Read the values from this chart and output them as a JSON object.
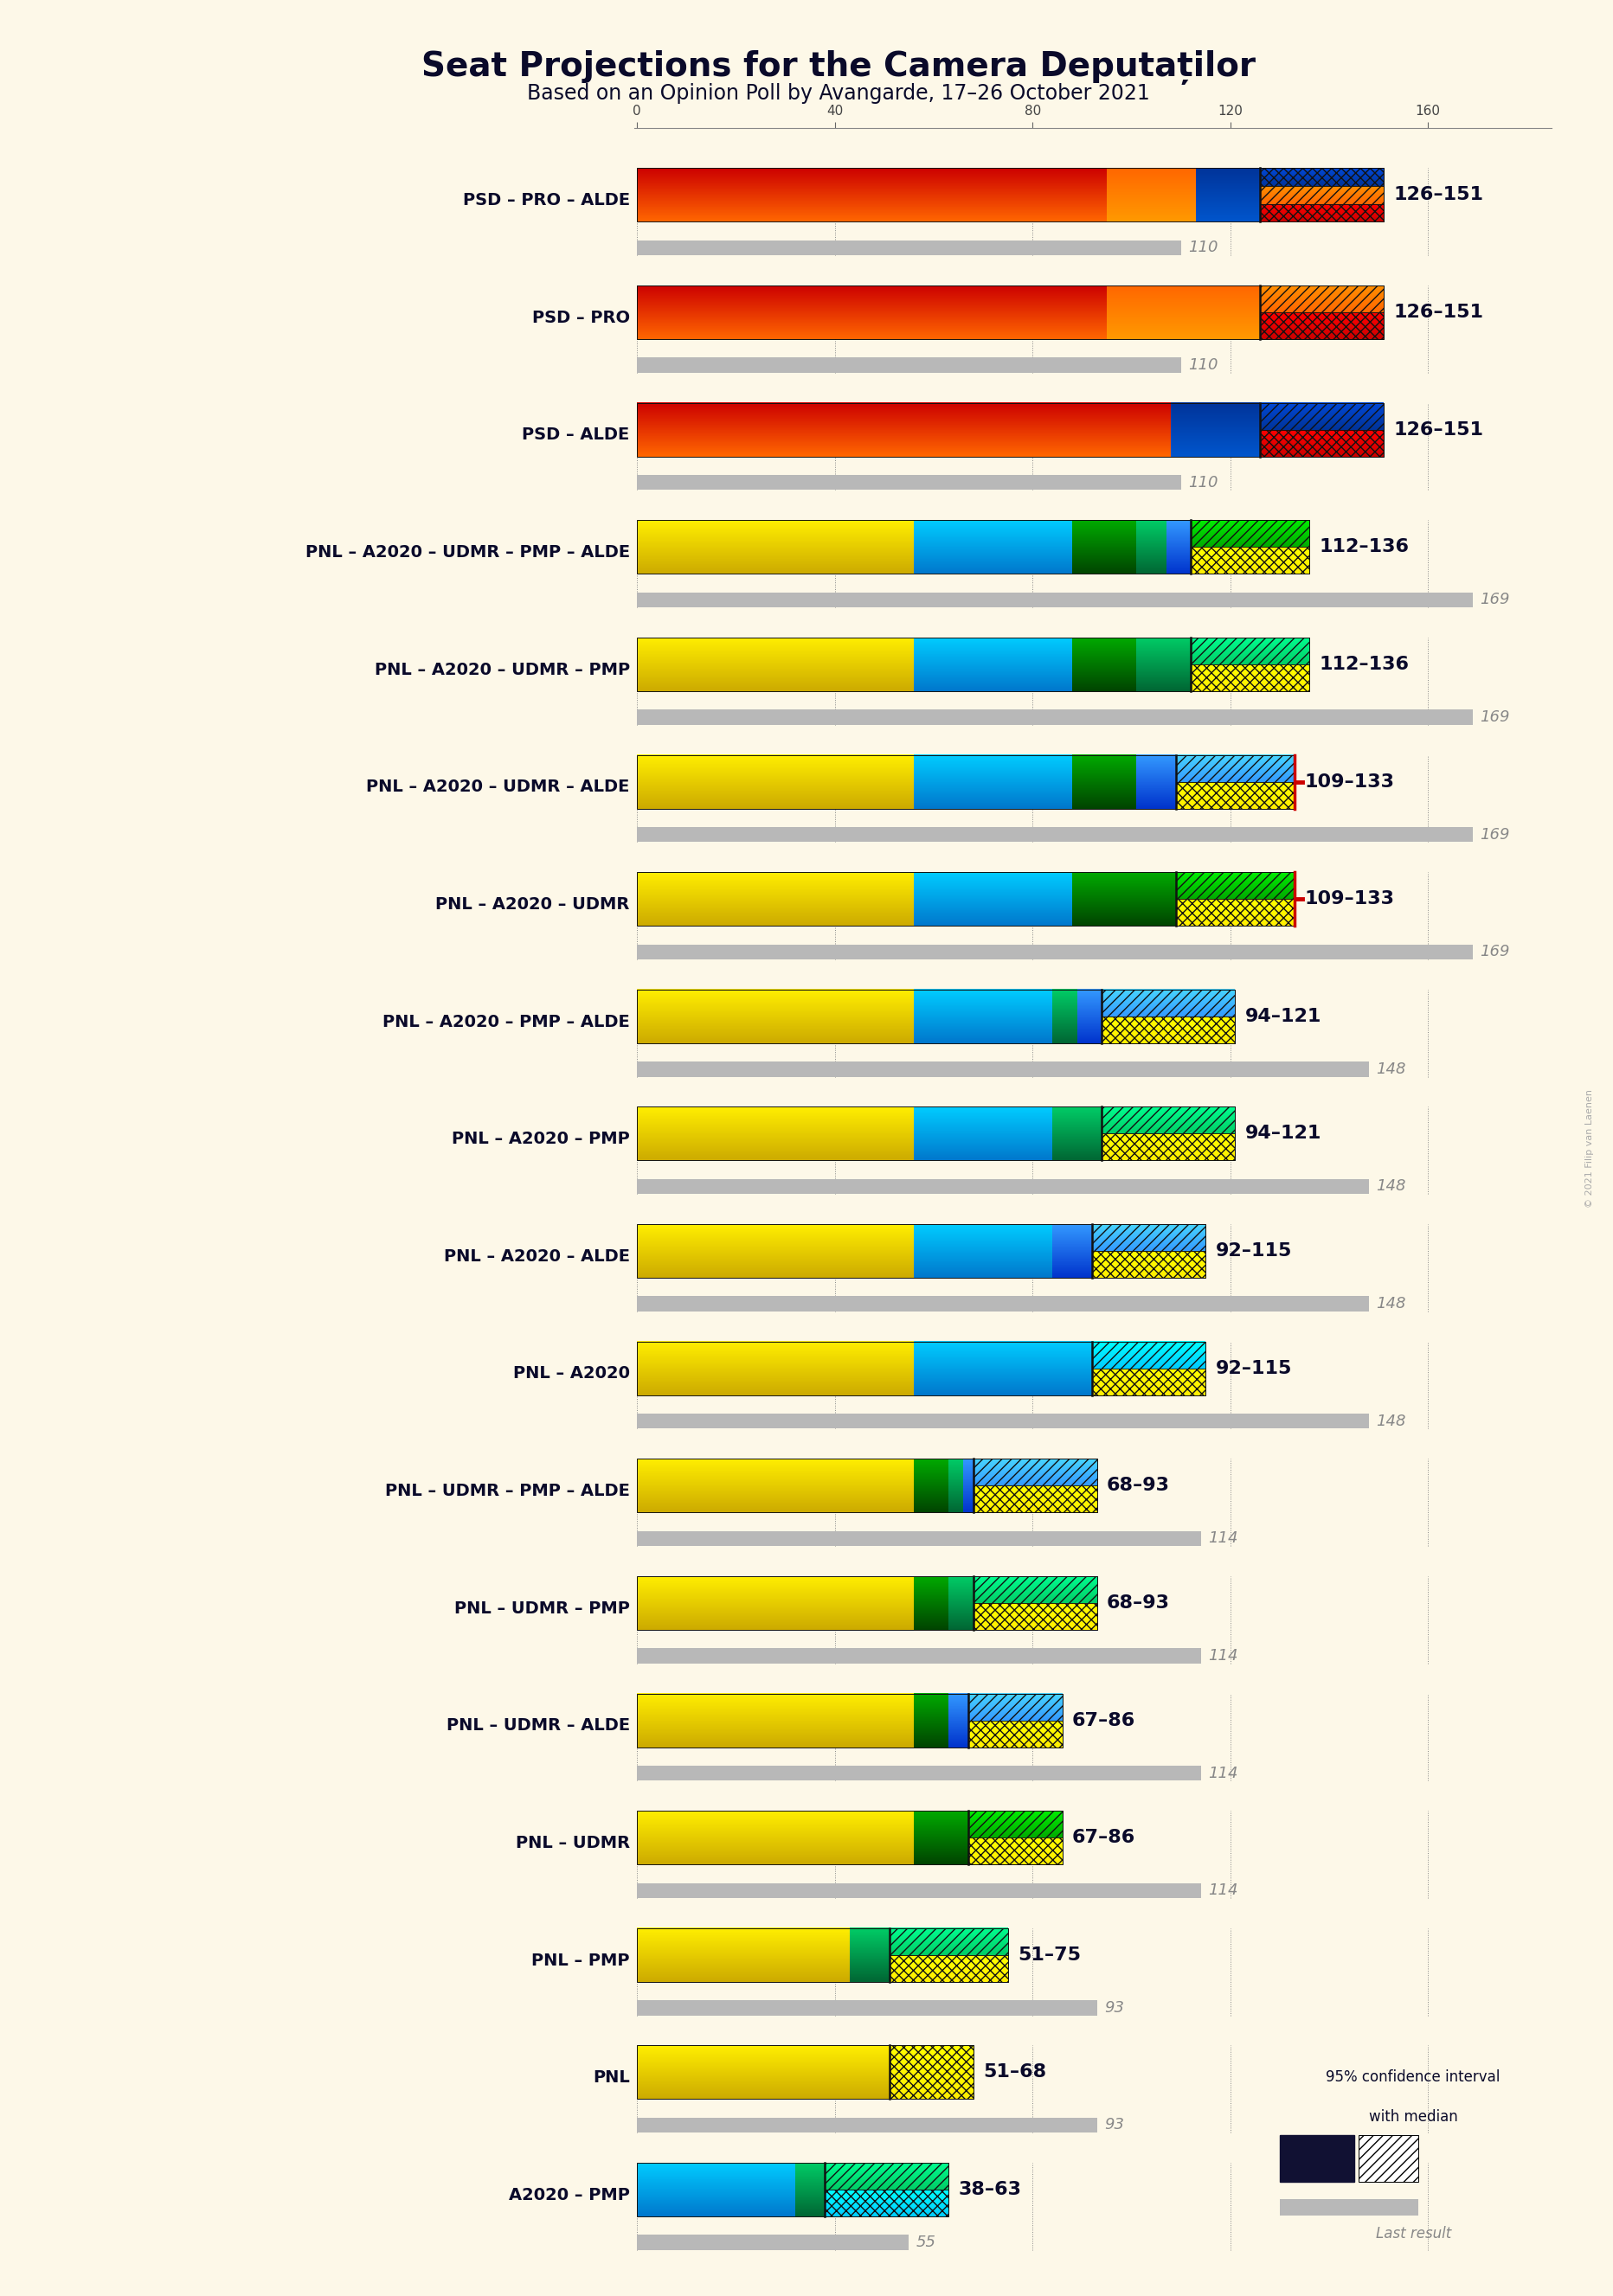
{
  "title": "Seat Projections for the Camera Deputaților",
  "subtitle": "Based on an Opinion Poll by Avangarde, 17–26 October 2021",
  "background_color": "#fdf8e8",
  "watermark": "© 2021 Filip van Laenen",
  "coalitions": [
    {
      "name": "PSD – PRO – ALDE",
      "median": 126,
      "ci_high": 151,
      "last_result": 110,
      "label": "126–151",
      "last_label": "110",
      "last_result_red": false,
      "type": "psd",
      "segments": [
        {
          "party": "PSD",
          "color_top": "#cc0000",
          "color_bot": "#ff6600",
          "seats": 95
        },
        {
          "party": "PRO",
          "color_top": "#ff6600",
          "color_bot": "#ff9900",
          "seats": 18
        },
        {
          "party": "ALDE",
          "color_top": "#003399",
          "color_bot": "#0055cc",
          "seats": 13
        }
      ],
      "ci_colors": [
        "#cc0000",
        "#ff6600",
        "#003399"
      ]
    },
    {
      "name": "PSD – PRO",
      "median": 126,
      "ci_high": 151,
      "last_result": 110,
      "label": "126–151",
      "last_label": "110",
      "last_result_red": false,
      "type": "psd",
      "segments": [
        {
          "party": "PSD",
          "color_top": "#cc0000",
          "color_bot": "#ff6600",
          "seats": 95
        },
        {
          "party": "PRO",
          "color_top": "#ff6600",
          "color_bot": "#ff9900",
          "seats": 31
        }
      ],
      "ci_colors": [
        "#cc0000",
        "#ff6600"
      ]
    },
    {
      "name": "PSD – ALDE",
      "median": 126,
      "ci_high": 151,
      "last_result": 110,
      "label": "126–151",
      "last_label": "110",
      "last_result_red": false,
      "type": "psd",
      "segments": [
        {
          "party": "PSD",
          "color_top": "#cc0000",
          "color_bot": "#ff6600",
          "seats": 108
        },
        {
          "party": "ALDE",
          "color_top": "#003399",
          "color_bot": "#0055cc",
          "seats": 18
        }
      ],
      "ci_colors": [
        "#cc0000",
        "#003399"
      ]
    },
    {
      "name": "PNL – A2020 – UDMR – PMP – ALDE",
      "median": 112,
      "ci_high": 136,
      "last_result": 169,
      "label": "112–136",
      "last_label": "169",
      "last_result_red": false,
      "type": "pnl",
      "segments": [
        {
          "party": "PNL",
          "color_top": "#ffee00",
          "color_bot": "#ccaa00",
          "seats": 56
        },
        {
          "party": "A2020",
          "color_top": "#00ccff",
          "color_bot": "#0077cc",
          "seats": 32
        },
        {
          "party": "UDMR",
          "color_top": "#00aa00",
          "color_bot": "#004400",
          "seats": 13
        },
        {
          "party": "PMP",
          "color_top": "#00cc66",
          "color_bot": "#006633",
          "seats": 6
        },
        {
          "party": "ALDE",
          "color_top": "#3399ff",
          "color_bot": "#0033cc",
          "seats": 5
        }
      ],
      "ci_colors": [
        "#ffee00",
        "#00aa00"
      ]
    },
    {
      "name": "PNL – A2020 – UDMR – PMP",
      "median": 112,
      "ci_high": 136,
      "last_result": 169,
      "label": "112–136",
      "last_label": "169",
      "last_result_red": false,
      "type": "pnl",
      "segments": [
        {
          "party": "PNL",
          "color_top": "#ffee00",
          "color_bot": "#ccaa00",
          "seats": 56
        },
        {
          "party": "A2020",
          "color_top": "#00ccff",
          "color_bot": "#0077cc",
          "seats": 32
        },
        {
          "party": "UDMR",
          "color_top": "#00aa00",
          "color_bot": "#004400",
          "seats": 13
        },
        {
          "party": "PMP",
          "color_top": "#00cc66",
          "color_bot": "#006633",
          "seats": 11
        }
      ],
      "ci_colors": [
        "#ffee00",
        "#00cc66"
      ]
    },
    {
      "name": "PNL – A2020 – UDMR – ALDE",
      "median": 109,
      "ci_high": 133,
      "last_result": 169,
      "label": "109–133",
      "last_label": "169",
      "last_result_red": true,
      "type": "pnl",
      "segments": [
        {
          "party": "PNL",
          "color_top": "#ffee00",
          "color_bot": "#ccaa00",
          "seats": 56
        },
        {
          "party": "A2020",
          "color_top": "#00ccff",
          "color_bot": "#0077cc",
          "seats": 32
        },
        {
          "party": "UDMR",
          "color_top": "#00aa00",
          "color_bot": "#004400",
          "seats": 13
        },
        {
          "party": "ALDE",
          "color_top": "#3399ff",
          "color_bot": "#0033cc",
          "seats": 8
        }
      ],
      "ci_colors": [
        "#ffee00",
        "#3399ff"
      ]
    },
    {
      "name": "PNL – A2020 – UDMR",
      "median": 109,
      "ci_high": 133,
      "last_result": 169,
      "label": "109–133",
      "last_label": "169",
      "last_result_red": true,
      "type": "pnl",
      "segments": [
        {
          "party": "PNL",
          "color_top": "#ffee00",
          "color_bot": "#ccaa00",
          "seats": 56
        },
        {
          "party": "A2020",
          "color_top": "#00ccff",
          "color_bot": "#0077cc",
          "seats": 32
        },
        {
          "party": "UDMR",
          "color_top": "#00aa00",
          "color_bot": "#004400",
          "seats": 21
        }
      ],
      "ci_colors": [
        "#ffee00",
        "#00aa00"
      ]
    },
    {
      "name": "PNL – A2020 – PMP – ALDE",
      "median": 94,
      "ci_high": 121,
      "last_result": 148,
      "label": "94–121",
      "last_label": "148",
      "last_result_red": false,
      "type": "pnl",
      "segments": [
        {
          "party": "PNL",
          "color_top": "#ffee00",
          "color_bot": "#ccaa00",
          "seats": 56
        },
        {
          "party": "A2020",
          "color_top": "#00ccff",
          "color_bot": "#0077cc",
          "seats": 28
        },
        {
          "party": "PMP",
          "color_top": "#00cc66",
          "color_bot": "#006633",
          "seats": 5
        },
        {
          "party": "ALDE",
          "color_top": "#3399ff",
          "color_bot": "#0033cc",
          "seats": 5
        }
      ],
      "ci_colors": [
        "#ffee00",
        "#3399ff"
      ]
    },
    {
      "name": "PNL – A2020 – PMP",
      "median": 94,
      "ci_high": 121,
      "last_result": 148,
      "label": "94–121",
      "last_label": "148",
      "last_result_red": false,
      "type": "pnl",
      "segments": [
        {
          "party": "PNL",
          "color_top": "#ffee00",
          "color_bot": "#ccaa00",
          "seats": 56
        },
        {
          "party": "A2020",
          "color_top": "#00ccff",
          "color_bot": "#0077cc",
          "seats": 28
        },
        {
          "party": "PMP",
          "color_top": "#00cc66",
          "color_bot": "#006633",
          "seats": 10
        }
      ],
      "ci_colors": [
        "#ffee00",
        "#00cc66"
      ]
    },
    {
      "name": "PNL – A2020 – ALDE",
      "median": 92,
      "ci_high": 115,
      "last_result": 148,
      "label": "92–115",
      "last_label": "148",
      "last_result_red": false,
      "type": "pnl",
      "segments": [
        {
          "party": "PNL",
          "color_top": "#ffee00",
          "color_bot": "#ccaa00",
          "seats": 56
        },
        {
          "party": "A2020",
          "color_top": "#00ccff",
          "color_bot": "#0077cc",
          "seats": 28
        },
        {
          "party": "ALDE",
          "color_top": "#3399ff",
          "color_bot": "#0033cc",
          "seats": 8
        }
      ],
      "ci_colors": [
        "#ffee00",
        "#3399ff"
      ]
    },
    {
      "name": "PNL – A2020",
      "median": 92,
      "ci_high": 115,
      "last_result": 148,
      "label": "92–115",
      "last_label": "148",
      "last_result_red": false,
      "type": "pnl",
      "segments": [
        {
          "party": "PNL",
          "color_top": "#ffee00",
          "color_bot": "#ccaa00",
          "seats": 56
        },
        {
          "party": "A2020",
          "color_top": "#00ccff",
          "color_bot": "#0077cc",
          "seats": 36
        }
      ],
      "ci_colors": [
        "#ffee00",
        "#00ccff"
      ]
    },
    {
      "name": "PNL – UDMR – PMP – ALDE",
      "median": 68,
      "ci_high": 93,
      "last_result": 114,
      "label": "68–93",
      "last_label": "114",
      "last_result_red": false,
      "type": "pnl",
      "segments": [
        {
          "party": "PNL",
          "color_top": "#ffee00",
          "color_bot": "#ccaa00",
          "seats": 56
        },
        {
          "party": "UDMR",
          "color_top": "#00aa00",
          "color_bot": "#004400",
          "seats": 7
        },
        {
          "party": "PMP",
          "color_top": "#00cc66",
          "color_bot": "#006633",
          "seats": 3
        },
        {
          "party": "ALDE",
          "color_top": "#3399ff",
          "color_bot": "#0033cc",
          "seats": 2
        }
      ],
      "ci_colors": [
        "#ffee00",
        "#3399ff"
      ]
    },
    {
      "name": "PNL – UDMR – PMP",
      "median": 68,
      "ci_high": 93,
      "last_result": 114,
      "label": "68–93",
      "last_label": "114",
      "last_result_red": false,
      "type": "pnl",
      "segments": [
        {
          "party": "PNL",
          "color_top": "#ffee00",
          "color_bot": "#ccaa00",
          "seats": 56
        },
        {
          "party": "UDMR",
          "color_top": "#00aa00",
          "color_bot": "#004400",
          "seats": 7
        },
        {
          "party": "PMP",
          "color_top": "#00cc66",
          "color_bot": "#006633",
          "seats": 5
        }
      ],
      "ci_colors": [
        "#ffee00",
        "#00cc66"
      ]
    },
    {
      "name": "PNL – UDMR – ALDE",
      "median": 67,
      "ci_high": 86,
      "last_result": 114,
      "label": "67–86",
      "last_label": "114",
      "last_result_red": false,
      "type": "pnl",
      "segments": [
        {
          "party": "PNL",
          "color_top": "#ffee00",
          "color_bot": "#ccaa00",
          "seats": 56
        },
        {
          "party": "UDMR",
          "color_top": "#00aa00",
          "color_bot": "#004400",
          "seats": 7
        },
        {
          "party": "ALDE",
          "color_top": "#3399ff",
          "color_bot": "#0033cc",
          "seats": 4
        }
      ],
      "ci_colors": [
        "#ffee00",
        "#3399ff"
      ]
    },
    {
      "name": "PNL – UDMR",
      "median": 67,
      "ci_high": 86,
      "last_result": 114,
      "label": "67–86",
      "last_label": "114",
      "last_result_red": false,
      "type": "pnl",
      "segments": [
        {
          "party": "PNL",
          "color_top": "#ffee00",
          "color_bot": "#ccaa00",
          "seats": 56
        },
        {
          "party": "UDMR",
          "color_top": "#00aa00",
          "color_bot": "#004400",
          "seats": 11
        }
      ],
      "ci_colors": [
        "#ffee00",
        "#00aa00"
      ]
    },
    {
      "name": "PNL – PMP",
      "median": 51,
      "ci_high": 75,
      "last_result": 93,
      "label": "51–75",
      "last_label": "93",
      "last_result_red": false,
      "type": "pnl",
      "segments": [
        {
          "party": "PNL",
          "color_top": "#ffee00",
          "color_bot": "#ccaa00",
          "seats": 43
        },
        {
          "party": "PMP",
          "color_top": "#00cc66",
          "color_bot": "#006633",
          "seats": 8
        }
      ],
      "ci_colors": [
        "#ffee00",
        "#00cc66"
      ]
    },
    {
      "name": "PNL",
      "median": 51,
      "ci_high": 68,
      "last_result": 93,
      "label": "51–68",
      "last_label": "93",
      "last_result_red": false,
      "type": "pnl",
      "segments": [
        {
          "party": "PNL",
          "color_top": "#ffee00",
          "color_bot": "#ccaa00",
          "seats": 51
        }
      ],
      "ci_colors": [
        "#ffee00"
      ]
    },
    {
      "name": "A2020 – PMP",
      "median": 38,
      "ci_high": 63,
      "last_result": 55,
      "label": "38–63",
      "last_label": "55",
      "last_result_red": false,
      "type": "pnl",
      "segments": [
        {
          "party": "A2020",
          "color_top": "#00ccff",
          "color_bot": "#0077cc",
          "seats": 32
        },
        {
          "party": "PMP",
          "color_top": "#00cc66",
          "color_bot": "#006633",
          "seats": 6
        }
      ],
      "ci_colors": [
        "#00ccff",
        "#00cc66"
      ]
    }
  ],
  "x_ticks": [
    0,
    40,
    80,
    120,
    160
  ],
  "x_max": 185,
  "legend_text1": "95% confidence interval",
  "legend_text2": "with median",
  "legend_last": "Last result"
}
